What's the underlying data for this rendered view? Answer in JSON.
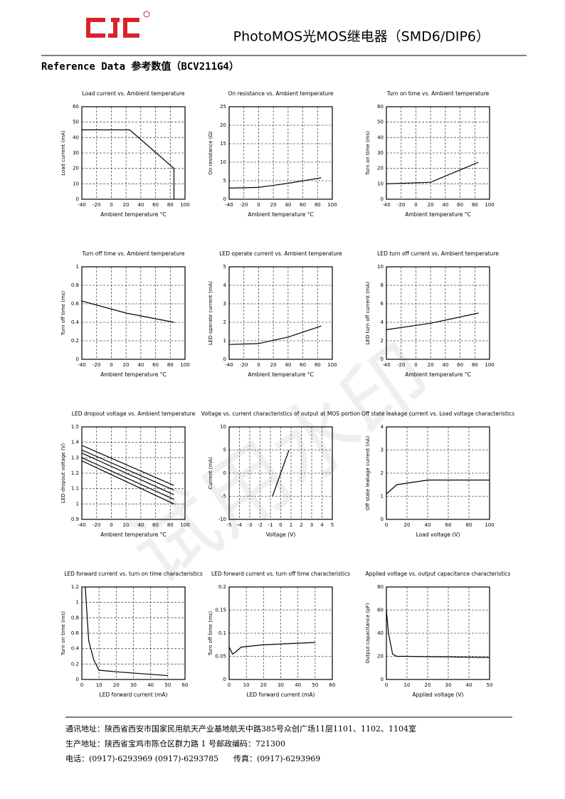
{
  "header": {
    "title": "PhotoMOS光MOS继电器（SMD6/DIP6）",
    "section": "Reference Data 参考数值（BCV211G4）"
  },
  "watermark": "试用水印",
  "charts": [
    {
      "type": "line",
      "title": "Load current vs. Ambient temperature",
      "xlabel": "Ambient temperature °C",
      "ylabel": "Load current (mA)",
      "xlim": [
        -40,
        100
      ],
      "xticks": [
        -40,
        -20,
        0,
        20,
        40,
        60,
        80,
        100
      ],
      "ylim": [
        0,
        60
      ],
      "yticks": [
        0,
        10,
        20,
        30,
        40,
        50,
        60
      ],
      "series": [
        {
          "color": "#000",
          "x": [
            -40,
            25,
            85,
            85
          ],
          "values": [
            45,
            45,
            20,
            0
          ]
        }
      ]
    },
    {
      "type": "line",
      "title": "On resistance vs. Ambient temperature",
      "xlabel": "Ambient temperature °C",
      "ylabel": "On resistance (Ω)",
      "xlim": [
        -40,
        100
      ],
      "xticks": [
        -40,
        -20,
        0,
        20,
        40,
        60,
        80,
        100
      ],
      "ylim": [
        0,
        25
      ],
      "yticks": [
        0,
        5,
        10,
        15,
        20,
        25
      ],
      "series": [
        {
          "color": "#000",
          "x": [
            -40,
            0,
            40,
            85
          ],
          "values": [
            3,
            3.2,
            4.3,
            5.8
          ]
        }
      ]
    },
    {
      "type": "line",
      "title": "Turn on time vs. Ambient temperature",
      "xlabel": "Ambient temperature °C",
      "ylabel": "Turn on time (ms)",
      "xlim": [
        -40,
        100
      ],
      "xticks": [
        -40,
        -20,
        0,
        20,
        40,
        60,
        80,
        100
      ],
      "ylim": [
        0,
        60
      ],
      "yticks": [
        0,
        10,
        20,
        30,
        40,
        50,
        60
      ],
      "series": [
        {
          "color": "#000",
          "x": [
            -40,
            20,
            85
          ],
          "values": [
            10,
            11,
            24
          ]
        }
      ]
    },
    {
      "type": "line",
      "title": "Turn off time vs. Ambient temperature",
      "xlabel": "Ambient temperature °C",
      "ylabel": "Turn off time (ms)",
      "xlim": [
        -40,
        100
      ],
      "xticks": [
        -40,
        -20,
        0,
        20,
        40,
        60,
        80,
        100
      ],
      "ylim": [
        0,
        1
      ],
      "yticks": [
        0,
        0.2,
        0.4,
        0.6,
        0.8,
        1
      ],
      "series": [
        {
          "color": "#000",
          "x": [
            -40,
            20,
            85
          ],
          "values": [
            0.63,
            0.5,
            0.4
          ]
        }
      ]
    },
    {
      "type": "line",
      "title": "LED operate current vs. Ambient temperature",
      "xlabel": "Ambient temperature °C",
      "ylabel": "LED operate current (mA)",
      "xlim": [
        -40,
        100
      ],
      "xticks": [
        -40,
        -20,
        0,
        20,
        40,
        60,
        80,
        100
      ],
      "ylim": [
        0,
        5
      ],
      "yticks": [
        0,
        1,
        2,
        3,
        4,
        5
      ],
      "series": [
        {
          "color": "#000",
          "x": [
            -40,
            0,
            40,
            85
          ],
          "values": [
            0.8,
            0.85,
            1.2,
            1.8
          ]
        }
      ]
    },
    {
      "type": "line",
      "title": "LED turn off current vs. Ambient temperature",
      "xlabel": "Ambient temperature °C",
      "ylabel": "LED turn off current (mA)",
      "xlim": [
        -40,
        100
      ],
      "xticks": [
        -40,
        -20,
        0,
        20,
        40,
        60,
        80,
        100
      ],
      "ylim": [
        0,
        10
      ],
      "yticks": [
        0,
        2,
        4,
        6,
        8,
        10
      ],
      "series": [
        {
          "color": "#000",
          "x": [
            -40,
            20,
            85
          ],
          "values": [
            3.2,
            3.9,
            5
          ]
        }
      ]
    },
    {
      "type": "line",
      "title": "LED dropout voltage vs. Ambient temperature",
      "xlabel": "Ambient temperature °C",
      "ylabel": "LED dropout voltage (V)",
      "xlim": [
        -40,
        100
      ],
      "xticks": [
        -40,
        -20,
        0,
        20,
        40,
        60,
        80,
        100
      ],
      "ylim": [
        0.9,
        1.5
      ],
      "yticks": [
        0.9,
        1,
        1.1,
        1.2,
        1.3,
        1.4,
        1.5
      ],
      "series": [
        {
          "color": "#000",
          "x": [
            -40,
            85
          ],
          "values": [
            1.38,
            1.12
          ]
        },
        {
          "color": "#000",
          "x": [
            -40,
            85
          ],
          "values": [
            1.35,
            1.09
          ]
        },
        {
          "color": "#000",
          "x": [
            -40,
            85
          ],
          "values": [
            1.33,
            1.06
          ]
        },
        {
          "color": "#000",
          "x": [
            -40,
            85
          ],
          "values": [
            1.3,
            1.03
          ]
        },
        {
          "color": "#000",
          "x": [
            -40,
            85
          ],
          "values": [
            1.28,
            1
          ]
        }
      ]
    },
    {
      "type": "line",
      "title": "Voltage vs. current characteristics of output at MOS portion",
      "xlabel": "Voltage (V)",
      "ylabel": "Current (mA)",
      "xlim": [
        -5,
        5
      ],
      "xticks": [
        -5,
        -4,
        -3,
        -2,
        -1,
        0,
        1,
        2,
        3,
        4,
        5
      ],
      "ylim": [
        -10,
        10
      ],
      "yticks": [
        -10,
        -5,
        0,
        5,
        10
      ],
      "series": [
        {
          "color": "#000",
          "x": [
            -0.8,
            0,
            0.8
          ],
          "values": [
            -5,
            0,
            5
          ]
        }
      ]
    },
    {
      "type": "line",
      "title": "Off state leakage current vs. Load voltage characteristics",
      "xlabel": "Load voltage (V)",
      "ylabel": "Off state leakage current (nA)",
      "xlim": [
        0,
        100
      ],
      "xticks": [
        0,
        20,
        40,
        60,
        80,
        100
      ],
      "ylim": [
        0,
        4
      ],
      "yticks": [
        0,
        1,
        2,
        3,
        4
      ],
      "series": [
        {
          "color": "#000",
          "x": [
            0,
            10,
            40,
            100
          ],
          "values": [
            1.1,
            1.5,
            1.7,
            1.7
          ]
        }
      ]
    },
    {
      "type": "line",
      "title": "LED forward current vs. turn on time characteristics",
      "xlabel": "LED forward current (mA)",
      "ylabel": "Turn on time (ms)",
      "xlim": [
        0,
        60
      ],
      "xticks": [
        0,
        10,
        20,
        30,
        40,
        50,
        60
      ],
      "ylim": [
        0,
        1.2
      ],
      "yticks": [
        0,
        0.2,
        0.4,
        0.6,
        0.8,
        1,
        1.2
      ],
      "series": [
        {
          "color": "#000",
          "x": [
            2,
            4,
            7,
            10,
            20,
            50
          ],
          "values": [
            1.2,
            0.5,
            0.25,
            0.12,
            0.1,
            0.05
          ]
        }
      ]
    },
    {
      "type": "line",
      "title": "LED forward current vs. turn off time characteristics",
      "xlabel": "LED forward current (mA)",
      "ylabel": "Turn off time (ms)",
      "xlim": [
        0,
        60
      ],
      "xticks": [
        0,
        10,
        20,
        30,
        40,
        50,
        60
      ],
      "ylim": [
        0,
        0.2
      ],
      "yticks": [
        0,
        0.05,
        0.1,
        0.15,
        0.2
      ],
      "series": [
        {
          "color": "#000",
          "x": [
            0,
            2,
            4,
            7,
            20,
            50
          ],
          "values": [
            0.07,
            0.055,
            0.06,
            0.07,
            0.075,
            0.08
          ]
        }
      ]
    },
    {
      "type": "line",
      "title": "Applied voltage vs. output capacitance characteristics",
      "xlabel": "Applied voltage (V)",
      "ylabel": "Output capacitance (pF)",
      "xlim": [
        0,
        50
      ],
      "xticks": [
        0,
        10,
        20,
        30,
        40,
        50
      ],
      "ylim": [
        0,
        80
      ],
      "yticks": [
        0,
        20,
        40,
        60,
        80
      ],
      "series": [
        {
          "color": "#000",
          "x": [
            0,
            1,
            3,
            5,
            10,
            50
          ],
          "values": [
            60,
            40,
            22,
            20,
            20,
            19
          ]
        }
      ]
    }
  ],
  "footer": {
    "lines": [
      "通讯地址：陕西省西安市国家民用航天产业基地航天中路385号众创广场11层1101、1102、1104室",
      "生产地址：陕西省宝鸡市陈仓区群力路 1 号邮政编码：721300"
    ],
    "phone": "电话：(0917)-6293969 (0917)-6293785",
    "fax": "传真：(0917)-6293969"
  }
}
